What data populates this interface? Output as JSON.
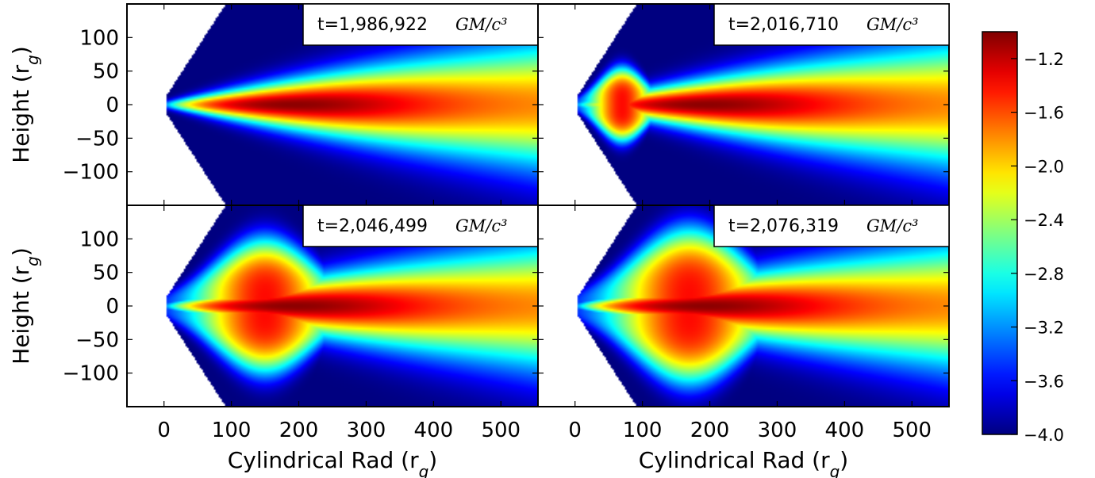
{
  "chart_data": [
    {
      "type": "heatmap",
      "panel": "top-left",
      "annotation": {
        "time": "t=1,986,922",
        "unit_math": "GM/c³"
      },
      "xlim": [
        -55,
        555
      ],
      "ylim": [
        -150,
        150
      ],
      "xticks": [
        "0",
        "100",
        "200",
        "300",
        "400",
        "500"
      ],
      "yticks": [
        "100",
        "50",
        "0",
        "−50",
        "−100"
      ],
      "xlabel": "",
      "ylabel": "Height (r_g)",
      "disk": {
        "core_peak": -1.02,
        "inner_bulge": false
      }
    },
    {
      "type": "heatmap",
      "panel": "top-right",
      "annotation": {
        "time": "t=2,016,710",
        "unit_math": "GM/c³"
      },
      "xlim": [
        -55,
        555
      ],
      "ylim": [
        -150,
        150
      ],
      "xticks": [
        "0",
        "100",
        "200",
        "300",
        "400",
        "500"
      ],
      "yticks": [],
      "xlabel": "",
      "ylabel": "",
      "disk": {
        "core_peak": -1.02,
        "inner_bulge": true,
        "bulge_center_x": 70,
        "bulge_height": 55
      }
    },
    {
      "type": "heatmap",
      "panel": "bottom-left",
      "annotation": {
        "time": "t=2,046,499",
        "unit_math": "GM/c³"
      },
      "xlim": [
        -55,
        555
      ],
      "ylim": [
        -150,
        150
      ],
      "xticks": [
        "0",
        "100",
        "200",
        "300",
        "400",
        "500"
      ],
      "yticks": [
        "100",
        "50",
        "0",
        "−50",
        "−100"
      ],
      "xlabel": "Cylindrical Rad (r_g)",
      "ylabel": "Height (r_g)",
      "disk": {
        "core_peak": -1.02,
        "inner_bulge": true,
        "bulge_center_x": 150,
        "bulge_height": 100
      }
    },
    {
      "type": "heatmap",
      "panel": "bottom-right",
      "annotation": {
        "time": "t=2,076,319",
        "unit_math": "GM/c³"
      },
      "xlim": [
        -55,
        555
      ],
      "ylim": [
        -150,
        150
      ],
      "xticks": [
        "0",
        "100",
        "200",
        "300",
        "400",
        "500"
      ],
      "yticks": [],
      "xlabel": "Cylindrical Rad (r_g)",
      "ylabel": "",
      "disk": {
        "core_peak": -1.02,
        "inner_bulge": true,
        "bulge_center_x": 170,
        "bulge_height": 115
      }
    }
  ],
  "colorbar": {
    "min": -4.0,
    "max": -1.0,
    "ticks": [
      "−1.2",
      "−1.6",
      "−2.0",
      "−2.4",
      "−2.8",
      "−3.2",
      "−3.6",
      "−4.0"
    ],
    "tick_values": [
      -1.2,
      -1.6,
      -2.0,
      -2.4,
      -2.8,
      -3.2,
      -3.6,
      -4.0
    ],
    "colormap": "jet"
  },
  "colors": {
    "background": "#ffffff",
    "floor": "#00007f",
    "frame": "#000000"
  }
}
